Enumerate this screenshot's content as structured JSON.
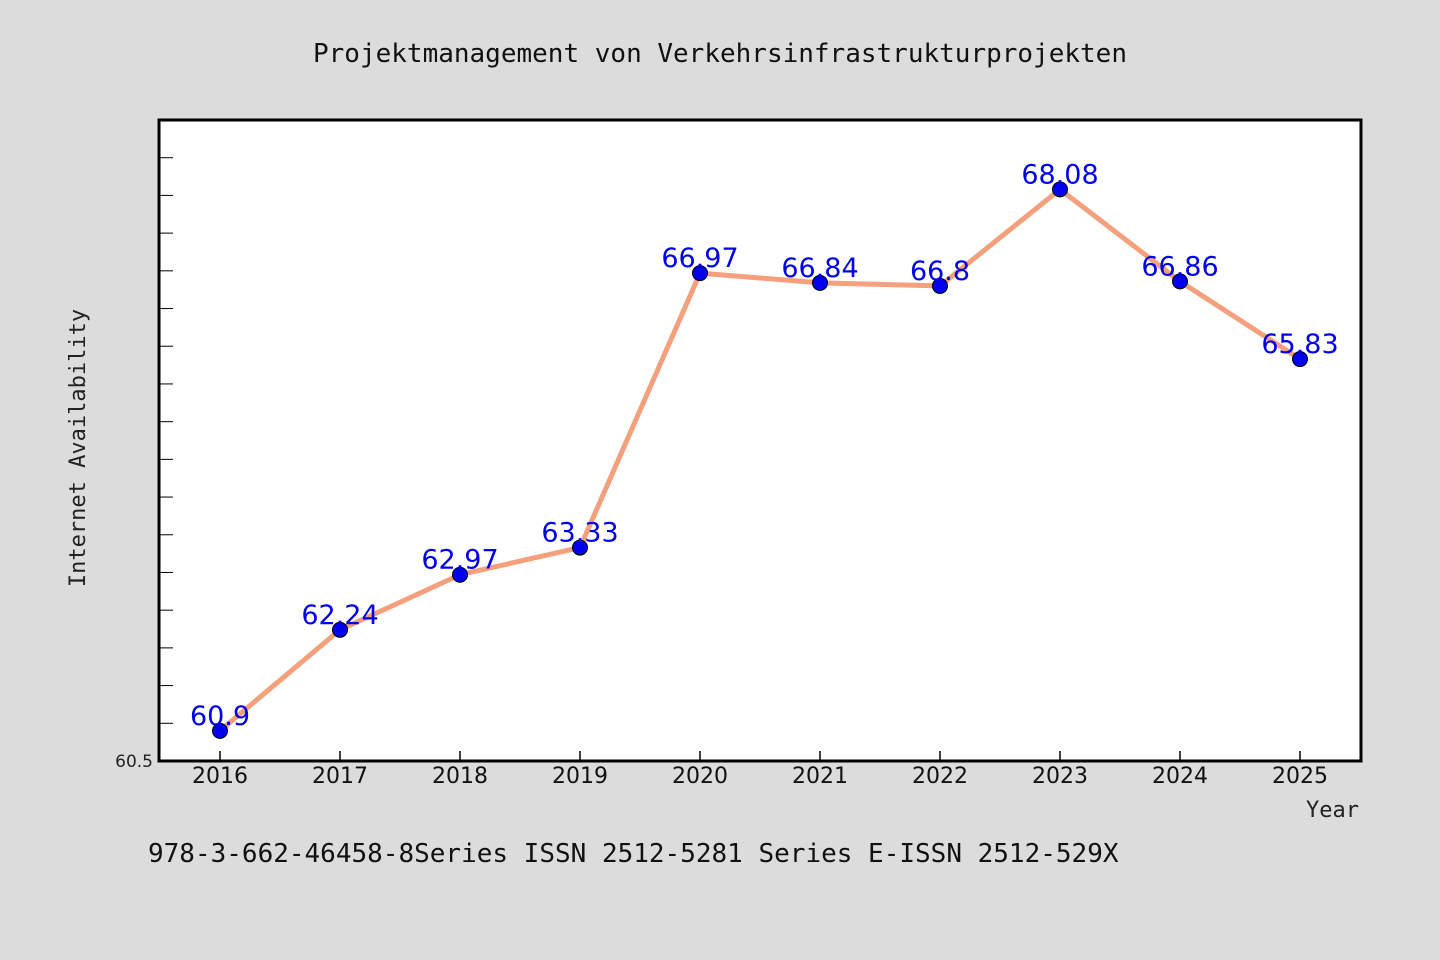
{
  "chart_data": {
    "type": "line",
    "title": "Projektmanagement von Verkehrsinfrastrukturprojekten",
    "xlabel": "Year",
    "ylabel": "Internet Availability",
    "x": [
      "2016",
      "2017",
      "2018",
      "2019",
      "2020",
      "2021",
      "2022",
      "2023",
      "2024",
      "2025"
    ],
    "series": [
      {
        "values": [
          60.9,
          62.24,
          62.97,
          63.33,
          66.97,
          66.84,
          66.8,
          68.08,
          66.86,
          65.83
        ],
        "labels": [
          "60.9",
          "62.24",
          "62.97",
          "63.33",
          "66.97",
          "66.84",
          "66.8",
          "68.08",
          "66.86",
          "65.83"
        ]
      }
    ],
    "ylim": [
      60.5,
      69.0
    ],
    "y_tick_labels": [
      "60.5"
    ],
    "grid": false,
    "colors": {
      "line": "#f4a07c",
      "marker": "#0000ee",
      "data_label": "#0000ee",
      "plot_background": "#ffffff",
      "figure_background": "#dcdcdc"
    }
  },
  "footer": "978-3-662-46458-8Series ISSN 2512-5281 Series E-ISSN 2512-529X"
}
